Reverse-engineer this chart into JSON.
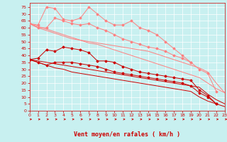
{
  "background_color": "#c8f0f0",
  "grid_color": "#ffffff",
  "xlabel": "Vent moyen/en rafales ( km/h )",
  "xlabel_color": "#cc0000",
  "xlabel_fontsize": 6,
  "xtick_color": "#cc0000",
  "ytick_color": "#cc0000",
  "x_values": [
    0,
    1,
    2,
    3,
    4,
    5,
    6,
    7,
    8,
    9,
    10,
    11,
    12,
    13,
    14,
    15,
    16,
    17,
    18,
    19,
    20,
    21,
    22,
    23
  ],
  "series": [
    {
      "color": "#ff8080",
      "linewidth": 0.7,
      "marker": "D",
      "markersize": 1.5,
      "y": [
        63,
        60,
        60,
        67,
        65,
        63,
        62,
        63,
        60,
        58,
        55,
        52,
        50,
        48,
        46,
        45,
        43,
        40,
        38,
        35,
        null,
        null,
        null,
        null
      ]
    },
    {
      "color": "#ff8080",
      "linewidth": 0.7,
      "marker": "D",
      "markersize": 1.5,
      "y": [
        63,
        62,
        75,
        74,
        66,
        65,
        67,
        75,
        70,
        65,
        62,
        62,
        65,
        60,
        58,
        55,
        50,
        45,
        40,
        35,
        30,
        27,
        14,
        null
      ]
    },
    {
      "color": "#ff8080",
      "linewidth": 0.7,
      "marker": null,
      "markersize": 0,
      "y": [
        63,
        60,
        58,
        56,
        54,
        52,
        51,
        50,
        49,
        48,
        47,
        46,
        45,
        44,
        43,
        41,
        39,
        37,
        35,
        33,
        31,
        28,
        20,
        13
      ]
    },
    {
      "color": "#ff8080",
      "linewidth": 0.7,
      "marker": null,
      "markersize": 0,
      "y": [
        63,
        61,
        59,
        57,
        55,
        53,
        51,
        49,
        48,
        46,
        44,
        42,
        40,
        38,
        36,
        34,
        32,
        30,
        28,
        26,
        24,
        20,
        16,
        13
      ]
    },
    {
      "color": "#cc0000",
      "linewidth": 0.7,
      "marker": "D",
      "markersize": 1.5,
      "y": [
        37,
        38,
        44,
        43,
        46,
        45,
        44,
        42,
        36,
        36,
        35,
        32,
        30,
        28,
        27,
        26,
        25,
        24,
        23,
        22,
        15,
        11,
        5,
        null
      ]
    },
    {
      "color": "#cc0000",
      "linewidth": 0.7,
      "marker": "D",
      "markersize": 1.5,
      "y": [
        37,
        35,
        33,
        35,
        35,
        35,
        34,
        33,
        32,
        30,
        28,
        27,
        26,
        25,
        24,
        23,
        22,
        21,
        20,
        18,
        13,
        10,
        5,
        null
      ]
    },
    {
      "color": "#cc0000",
      "linewidth": 0.7,
      "marker": null,
      "markersize": 0,
      "y": [
        37,
        36,
        35,
        34,
        33,
        32,
        31,
        30,
        29,
        28,
        27,
        26,
        25,
        24,
        23,
        22,
        21,
        20,
        19,
        18,
        17,
        12,
        8,
        5
      ]
    },
    {
      "color": "#cc0000",
      "linewidth": 0.7,
      "marker": null,
      "markersize": 0,
      "y": [
        37,
        35,
        33,
        31,
        30,
        28,
        27,
        26,
        25,
        24,
        23,
        22,
        21,
        20,
        19,
        18,
        17,
        16,
        15,
        14,
        10,
        7,
        5,
        3
      ]
    }
  ],
  "ylim": [
    0,
    78
  ],
  "xlim": [
    0,
    23
  ],
  "yticks": [
    0,
    5,
    10,
    15,
    20,
    25,
    30,
    35,
    40,
    45,
    50,
    55,
    60,
    65,
    70,
    75
  ],
  "xticks": [
    0,
    1,
    2,
    3,
    4,
    5,
    6,
    7,
    8,
    9,
    10,
    11,
    12,
    13,
    14,
    15,
    16,
    17,
    18,
    19,
    20,
    21,
    22,
    23
  ]
}
